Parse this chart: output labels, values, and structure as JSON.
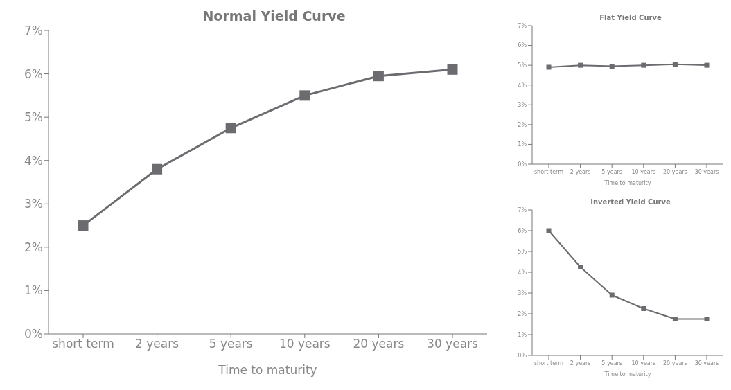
{
  "chart_data": [
    {
      "type": "line",
      "title": "Normal Yield Curve",
      "xlabel": "Time to maturity",
      "categories": [
        "short term",
        "2 years",
        "5 years",
        "10 years",
        "20 years",
        "30 years"
      ],
      "series": [
        {
          "color": "#6b6b70",
          "values": [
            2.5,
            3.8,
            4.75,
            5.5,
            5.95,
            6.1
          ]
        }
      ],
      "ylim": [
        0,
        7
      ],
      "yticks": [
        {
          "value": 0,
          "label": "0%"
        },
        {
          "value": 1,
          "label": "1%"
        },
        {
          "value": 2,
          "label": "2%"
        },
        {
          "value": 3,
          "label": "3%"
        },
        {
          "value": 4,
          "label": "4%"
        },
        {
          "value": 5,
          "label": "5%"
        },
        {
          "value": 6,
          "label": "6%"
        },
        {
          "value": 7,
          "label": "7%"
        }
      ],
      "marker": "square",
      "line_style": "solid"
    },
    {
      "type": "line",
      "title": "Flat Yield Curve",
      "xlabel": "Time to maturity",
      "categories": [
        "short term",
        "2 years",
        "5 years",
        "10 years",
        "20 years",
        "30 years"
      ],
      "series": [
        {
          "color": "#6b6b70",
          "values": [
            4.9,
            5.0,
            4.95,
            5.0,
            5.05,
            5.0
          ]
        }
      ],
      "ylim": [
        0,
        7
      ],
      "yticks": [
        {
          "value": 0,
          "label": "0%"
        },
        {
          "value": 1,
          "label": "1%"
        },
        {
          "value": 2,
          "label": "2%"
        },
        {
          "value": 3,
          "label": "3%"
        },
        {
          "value": 4,
          "label": "4%"
        },
        {
          "value": 5,
          "label": "5%"
        },
        {
          "value": 6,
          "label": "6%"
        },
        {
          "value": 7,
          "label": "7%"
        }
      ],
      "marker": "square",
      "line_style": "solid"
    },
    {
      "type": "line",
      "title": "Inverted Yield Curve",
      "xlabel": "Time to maturity",
      "categories": [
        "short term",
        "2 years",
        "5 years",
        "10 years",
        "20 years",
        "30 years"
      ],
      "series": [
        {
          "color": "#6b6b70",
          "values": [
            6.0,
            4.25,
            2.9,
            2.25,
            1.75,
            1.75
          ]
        }
      ],
      "ylim": [
        0,
        7
      ],
      "yticks": [
        {
          "value": 0,
          "label": "0%"
        },
        {
          "value": 1,
          "label": "1%"
        },
        {
          "value": 2,
          "label": "2%"
        },
        {
          "value": 3,
          "label": "3%"
        },
        {
          "value": 4,
          "label": "4%"
        },
        {
          "value": 5,
          "label": "5%"
        },
        {
          "value": 6,
          "label": "6%"
        },
        {
          "value": 7,
          "label": "7%"
        }
      ],
      "marker": "square",
      "line_style": "solid"
    }
  ]
}
